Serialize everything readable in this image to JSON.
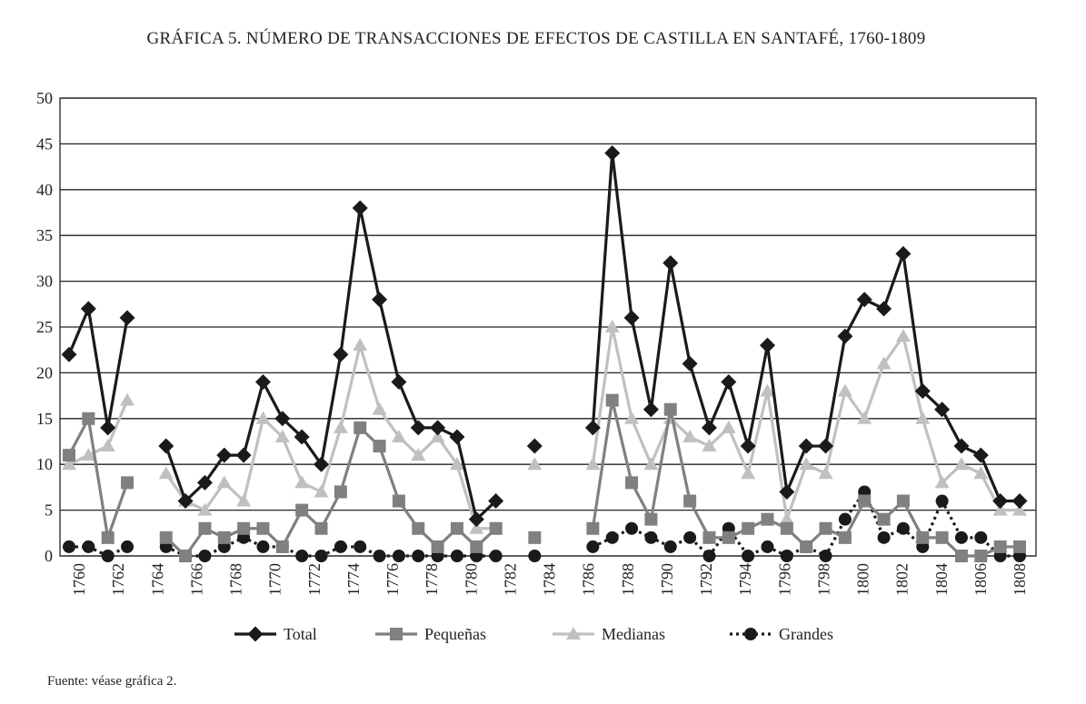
{
  "title": "GRÁFICA 5. NÚMERO DE TRANSACCIONES DE EFECTOS DE CASTILLA EN SANTAFÉ, 1760-1809",
  "source": "Fuente: véase gráfica 2.",
  "chart_data": {
    "type": "line",
    "title": "GRÁFICA 5. NÚMERO DE TRANSACCIONES DE EFECTOS DE CASTILLA EN SANTAFÉ, 1760-1809",
    "xlabel": "",
    "ylabel": "",
    "ylim": [
      0,
      50
    ],
    "yticks": [
      0,
      5,
      10,
      15,
      20,
      25,
      30,
      35,
      40,
      45,
      50
    ],
    "x": [
      1760,
      1761,
      1762,
      1763,
      1764,
      1765,
      1766,
      1767,
      1768,
      1769,
      1770,
      1771,
      1772,
      1773,
      1774,
      1775,
      1776,
      1777,
      1778,
      1779,
      1780,
      1781,
      1782,
      1783,
      1784,
      1785,
      1786,
      1787,
      1788,
      1789,
      1790,
      1791,
      1792,
      1793,
      1794,
      1795,
      1796,
      1797,
      1798,
      1799,
      1800,
      1801,
      1802,
      1803,
      1804,
      1805,
      1806,
      1807,
      1808,
      1809
    ],
    "xtick_labels": [
      "1760",
      "1762",
      "1764",
      "1766",
      "1768",
      "1770",
      "1772",
      "1774",
      "1776",
      "1778",
      "1780",
      "1782",
      "1784",
      "1786",
      "1788",
      "1790",
      "1792",
      "1794",
      "1796",
      "1798",
      "1800",
      "1802",
      "1804",
      "1806",
      "1808"
    ],
    "grid": "horizontal",
    "legend_position": "bottom",
    "series": [
      {
        "name": "Total",
        "color": "#1a1a1a",
        "marker": "diamond",
        "line": "solid",
        "values": [
          22,
          27,
          14,
          26,
          null,
          12,
          6,
          8,
          11,
          11,
          19,
          15,
          13,
          10,
          22,
          38,
          28,
          19,
          14,
          14,
          13,
          4,
          6,
          null,
          12,
          null,
          null,
          14,
          44,
          26,
          16,
          32,
          21,
          14,
          19,
          12,
          23,
          7,
          12,
          12,
          24,
          28,
          27,
          33,
          18,
          16,
          12,
          11,
          6,
          6
        ]
      },
      {
        "name": "Pequeñas",
        "color": "#808080",
        "marker": "square",
        "line": "solid",
        "values": [
          11,
          15,
          2,
          8,
          null,
          2,
          0,
          3,
          2,
          3,
          3,
          1,
          5,
          3,
          7,
          14,
          12,
          6,
          3,
          1,
          3,
          1,
          3,
          null,
          2,
          null,
          null,
          3,
          17,
          8,
          4,
          16,
          6,
          2,
          2,
          3,
          4,
          3,
          1,
          3,
          2,
          6,
          4,
          6,
          2,
          2,
          0,
          0,
          1,
          1
        ]
      },
      {
        "name": "Medianas",
        "color": "#c0c0c0",
        "marker": "triangle",
        "line": "solid",
        "values": [
          10,
          11,
          12,
          17,
          null,
          9,
          6,
          5,
          8,
          6,
          15,
          13,
          8,
          7,
          14,
          23,
          16,
          13,
          11,
          13,
          10,
          3,
          3,
          null,
          10,
          null,
          null,
          10,
          25,
          15,
          10,
          15,
          13,
          12,
          14,
          9,
          18,
          4,
          10,
          9,
          18,
          15,
          21,
          24,
          15,
          8,
          10,
          9,
          5,
          5
        ]
      },
      {
        "name": "Grandes",
        "color": "#1a1a1a",
        "marker": "circle",
        "line": "dotted",
        "values": [
          1,
          1,
          0,
          1,
          null,
          1,
          0,
          0,
          1,
          2,
          1,
          1,
          0,
          0,
          1,
          1,
          0,
          0,
          0,
          0,
          0,
          0,
          0,
          null,
          0,
          null,
          null,
          1,
          2,
          3,
          2,
          1,
          2,
          0,
          3,
          0,
          1,
          0,
          1,
          0,
          4,
          7,
          2,
          3,
          1,
          6,
          2,
          2,
          0,
          0
        ]
      }
    ]
  }
}
